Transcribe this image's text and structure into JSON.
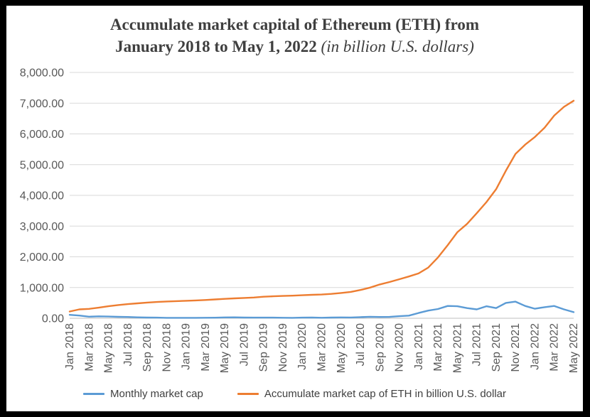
{
  "window": {
    "border_color": "#000000",
    "background": "#ffffff"
  },
  "title": {
    "line1": "Accumulate market capital of Ethereum (ETH) from",
    "line2_main": "January 2018 to May 1, 2022 ",
    "line2_note": "(in billion U.S. dollars)"
  },
  "colors": {
    "monthly_series": "#5b9bd5",
    "accumulate_series": "#ed7d31",
    "gridline": "#d9d9d9",
    "axis_line": "#bfbfbf",
    "tick_label": "#595959",
    "title_text": "#3f3f3f"
  },
  "chart_data": {
    "type": "line",
    "title": "Accumulate market capital of Ethereum (ETH) from January 2018 to May 1, 2022 (in billion U.S. dollars)",
    "xlabel": "",
    "ylabel": "",
    "ylim": [
      0,
      8000
    ],
    "grid": true,
    "legend_position": "bottom",
    "y_ticks": [
      "0.00",
      "1,000.00",
      "2,000.00",
      "3,000.00",
      "4,000.00",
      "5,000.00",
      "6,000.00",
      "7,000.00",
      "8,000.00"
    ],
    "x_ticks": [
      "Jan 2018",
      "Mar 2018",
      "May 2018",
      "Jul 2018",
      "Sep 2018",
      "Nov 2018",
      "Jan 2019",
      "Mar 2019",
      "May 2019",
      "Jul 2019",
      "Sep 2019",
      "Nov 2019",
      "Jan 2020",
      "Mar 2020",
      "May 2020",
      "Jul 2020",
      "Sep 2020",
      "Nov 2020",
      "Jan 2021",
      "Mar 2021",
      "May 2021",
      "Jul 2021",
      "Sep 2021",
      "Nov 2021",
      "Jan 2022",
      "Mar 2022",
      "May 2022"
    ],
    "x": [
      "Jan 2018",
      "Feb 2018",
      "Mar 2018",
      "Apr 2018",
      "May 2018",
      "Jun 2018",
      "Jul 2018",
      "Aug 2018",
      "Sep 2018",
      "Oct 2018",
      "Nov 2018",
      "Dec 2018",
      "Jan 2019",
      "Feb 2019",
      "Mar 2019",
      "Apr 2019",
      "May 2019",
      "Jun 2019",
      "Jul 2019",
      "Aug 2019",
      "Sep 2019",
      "Oct 2019",
      "Nov 2019",
      "Dec 2019",
      "Jan 2020",
      "Feb 2020",
      "Mar 2020",
      "Apr 2020",
      "May 2020",
      "Jun 2020",
      "Jul 2020",
      "Aug 2020",
      "Sep 2020",
      "Oct 2020",
      "Nov 2020",
      "Dec 2020",
      "Jan 2021",
      "Feb 2021",
      "Mar 2021",
      "Apr 2021",
      "May 2021",
      "Jun 2021",
      "Jul 2021",
      "Aug 2021",
      "Sep 2021",
      "Oct 2021",
      "Nov 2021",
      "Dec 2021",
      "Jan 2022",
      "Feb 2022",
      "Mar 2022",
      "Apr 2022",
      "May 2022"
    ],
    "series": [
      {
        "name": "Monthly market cap",
        "color": "#5b9bd5",
        "values": [
          110,
          88,
          50,
          62,
          56,
          46,
          42,
          30,
          23,
          21,
          14,
          15,
          13,
          15,
          16,
          18,
          27,
          30,
          24,
          20,
          20,
          20,
          17,
          15,
          21,
          25,
          17,
          24,
          27,
          26,
          38,
          48,
          41,
          44,
          68,
          85,
          170,
          250,
          300,
          400,
          390,
          330,
          290,
          390,
          330,
          500,
          540,
          400,
          310,
          360,
          400,
          290,
          200
        ]
      },
      {
        "name": "Accumulate market cap of ETH in billion U.S. dollar",
        "color": "#ed7d31",
        "values": [
          220,
          290,
          305,
          345,
          390,
          430,
          460,
          485,
          510,
          530,
          545,
          558,
          568,
          580,
          595,
          612,
          632,
          648,
          662,
          676,
          700,
          714,
          726,
          736,
          748,
          762,
          772,
          792,
          822,
          858,
          920,
          1000,
          1100,
          1180,
          1270,
          1360,
          1460,
          1650,
          1980,
          2380,
          2800,
          3070,
          3420,
          3780,
          4200,
          4800,
          5350,
          5650,
          5900,
          6200,
          6600,
          6880,
          7080
        ]
      }
    ]
  },
  "legend": {
    "items": [
      {
        "label": "Monthly market cap",
        "color": "#5b9bd5"
      },
      {
        "label": "Accumulate market cap of ETH in billion U.S. dollar",
        "color": "#ed7d31"
      }
    ]
  }
}
